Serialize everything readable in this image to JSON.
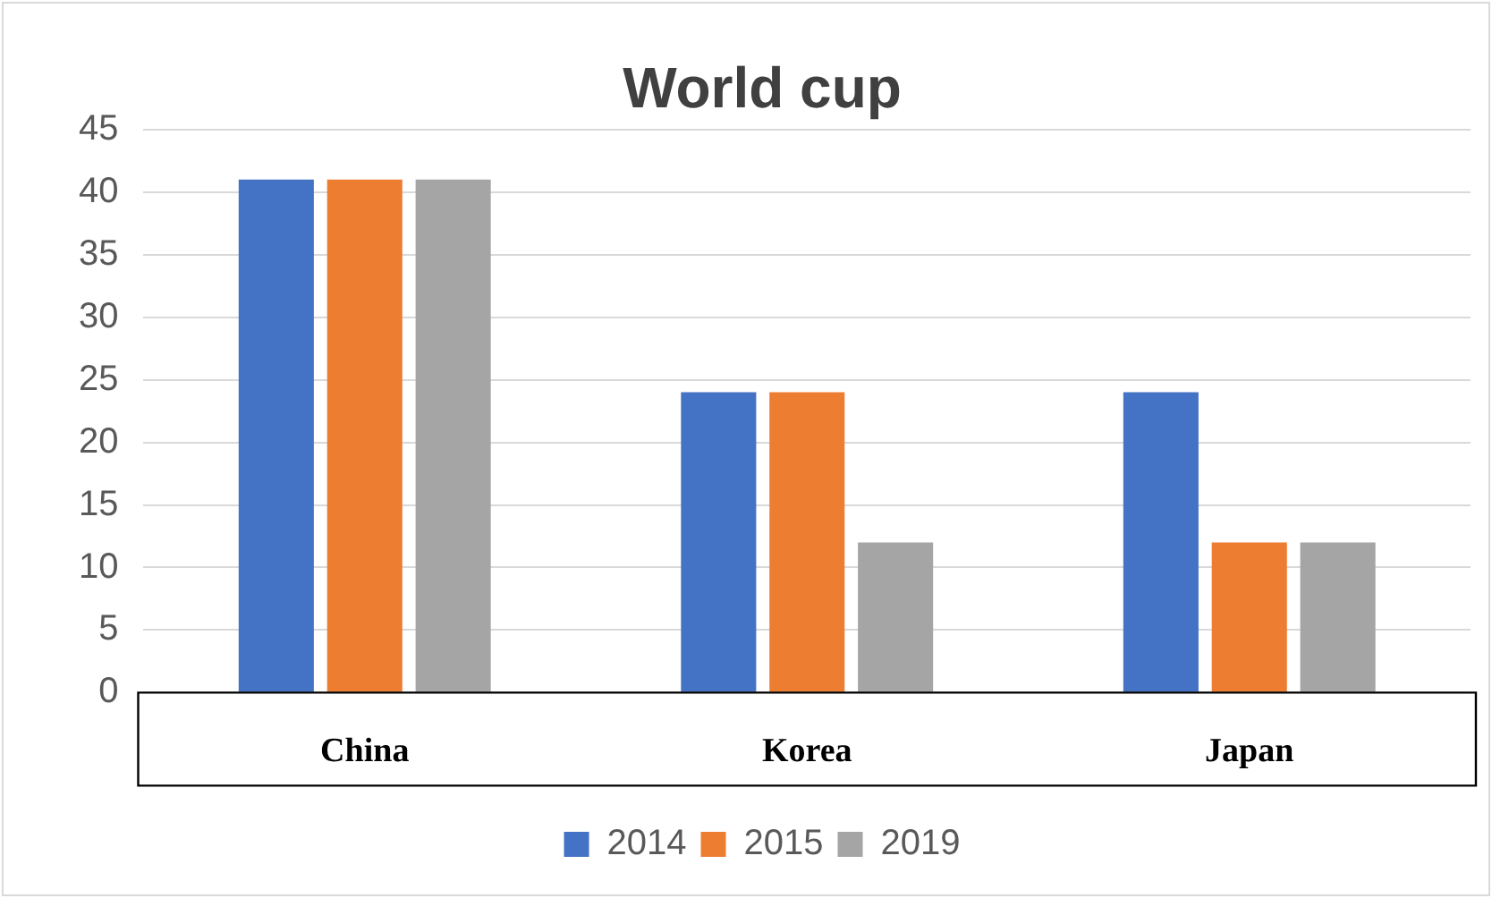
{
  "chart_data": {
    "type": "bar",
    "title": "World cup",
    "categories": [
      "China",
      "Korea",
      "Japan"
    ],
    "series": [
      {
        "name": "2014",
        "color": "#4472c4",
        "values": [
          41,
          24,
          24
        ]
      },
      {
        "name": "2015",
        "color": "#ed7d31",
        "values": [
          41,
          24,
          12
        ]
      },
      {
        "name": "2019",
        "color": "#a5a5a5",
        "values": [
          41,
          12,
          12
        ]
      }
    ],
    "ylim": [
      0,
      45
    ],
    "yticks": [
      0,
      5,
      10,
      15,
      20,
      25,
      30,
      35,
      40,
      45
    ],
    "grid": "y",
    "legend": "bottom"
  }
}
